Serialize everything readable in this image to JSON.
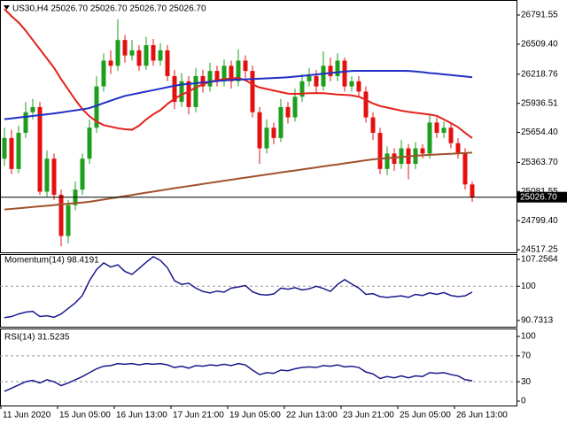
{
  "chart_data": [
    {
      "type": "candlestick",
      "title": "US30,H4  25026.70 25026.70 25026.70 25026.70",
      "categories": [
        "11 Jun 2020",
        null,
        null,
        null,
        null,
        null,
        null,
        null,
        "15 Jun 05:00",
        null,
        null,
        null,
        null,
        null,
        null,
        null,
        "16 Jun 13:00",
        null,
        null,
        null,
        null,
        null,
        null,
        null,
        "17 Jun 21:00",
        null,
        null,
        null,
        null,
        null,
        null,
        null,
        "19 Jun 05:00",
        null,
        null,
        null,
        null,
        null,
        null,
        null,
        "22 Jun 13:00",
        null,
        null,
        null,
        null,
        null,
        null,
        null,
        "23 Jun 21:00",
        null,
        null,
        null,
        null,
        null,
        null,
        null,
        "25 Jun 05:00",
        null,
        null,
        null,
        null,
        null,
        null,
        null,
        "26 Jun 13:00",
        null,
        null
      ],
      "open": [
        25400,
        25600,
        25300,
        25650,
        25850,
        25900,
        25080,
        25400,
        25050,
        24650,
        24950,
        25100,
        25400,
        25700,
        26100,
        26350,
        26300,
        26550,
        26400,
        26450,
        26300,
        26500,
        26350,
        26450,
        26200,
        25950,
        26150,
        25900,
        26200,
        26100,
        26250,
        26150,
        26300,
        26150,
        26350,
        26250,
        25850,
        25500,
        25700,
        25600,
        25900,
        25800,
        26000,
        26150,
        26200,
        26100,
        26300,
        26200,
        26350,
        26100,
        26150,
        26050,
        25800,
        25650,
        25300,
        25450,
        25350,
        25500,
        25350,
        25500,
        25450,
        25750,
        25650,
        25700,
        25550,
        25450,
        25150
      ],
      "high": [
        25700,
        25680,
        25720,
        25950,
        25980,
        25950,
        25480,
        25450,
        25100,
        25000,
        25180,
        25450,
        25780,
        26200,
        26420,
        26450,
        26750,
        26600,
        26550,
        26500,
        26580,
        26560,
        26520,
        26500,
        26260,
        26230,
        26200,
        26280,
        26260,
        26330,
        26300,
        26360,
        26350,
        26460,
        26400,
        26300,
        25900,
        25780,
        25750,
        25980,
        25950,
        26080,
        26220,
        26280,
        26260,
        26440,
        26380,
        26420,
        26380,
        26200,
        26200,
        26100,
        25850,
        25700,
        25520,
        25500,
        25580,
        25540,
        25560,
        25540,
        25820,
        25800,
        25760,
        25740,
        25600,
        25500,
        25180
      ],
      "low": [
        25330,
        25250,
        25260,
        25600,
        25780,
        25050,
        25030,
        25000,
        24550,
        24580,
        24900,
        25050,
        25350,
        25650,
        26050,
        26220,
        26250,
        26330,
        26350,
        26250,
        26260,
        26300,
        26300,
        26150,
        25880,
        25900,
        25830,
        25850,
        26040,
        26050,
        26100,
        26100,
        26080,
        26100,
        26180,
        25800,
        25350,
        25450,
        25540,
        25560,
        25740,
        25760,
        25950,
        26100,
        26040,
        26060,
        26150,
        26150,
        26050,
        26050,
        26000,
        25750,
        25580,
        25250,
        25240,
        25280,
        25300,
        25200,
        25300,
        25400,
        25400,
        25600,
        25600,
        25500,
        25400,
        25100,
        24980
      ],
      "close": [
        25600,
        25300,
        25650,
        25850,
        25900,
        25080,
        25400,
        25050,
        24650,
        24950,
        25100,
        25400,
        25700,
        26100,
        26350,
        26300,
        26550,
        26400,
        26450,
        26300,
        26500,
        26350,
        26450,
        26200,
        25950,
        26150,
        25900,
        26200,
        26100,
        26250,
        26150,
        26300,
        26150,
        26350,
        26250,
        25850,
        25500,
        25700,
        25600,
        25900,
        25800,
        26000,
        26150,
        26200,
        26100,
        26300,
        26200,
        26350,
        26100,
        26150,
        26050,
        25800,
        25650,
        25300,
        25450,
        25350,
        25500,
        25350,
        25500,
        25450,
        25750,
        25650,
        25700,
        25550,
        25450,
        25150,
        25026.7
      ],
      "up_color": "#1e9e1e",
      "down_color": "#e41010",
      "series": [
        {
          "color": "#e4221b",
          "values": [
            26850,
            26780,
            26720,
            26640,
            26550,
            26460,
            26370,
            26280,
            26170,
            26070,
            25970,
            25880,
            25810,
            25760,
            25725,
            25710,
            25695,
            25685,
            25680,
            25720,
            25780,
            25830,
            25870,
            25930,
            25980,
            26020,
            26050,
            26090,
            26120,
            26145,
            26160,
            26170,
            26178,
            26182,
            26160,
            26120,
            26090,
            26075,
            26060,
            26045,
            26030,
            26028,
            26030,
            26034,
            26036,
            26034,
            26028,
            26022,
            26018,
            26013,
            26000,
            25970,
            25935,
            25910,
            25895,
            25880,
            25865,
            25853,
            25845,
            25836,
            25827,
            25815,
            25780,
            25745,
            25705,
            25650,
            25600
          ]
        },
        {
          "color": "#1f2fc4",
          "values": [
            25782,
            25790,
            25798,
            25806,
            25814,
            25822,
            25830,
            25838,
            25848,
            25858,
            25868,
            25878,
            25890,
            25914,
            25938,
            25962,
            25986,
            26008,
            26022,
            26036,
            26050,
            26064,
            26078,
            26092,
            26106,
            26118,
            26124,
            26131,
            26138,
            26145,
            26152,
            26158,
            26163,
            26166,
            26169,
            26172,
            26175,
            26178,
            26181,
            26185,
            26189,
            26195,
            26202,
            26209,
            26216,
            26223,
            26230,
            26237,
            26244,
            26250,
            26251,
            26251,
            26251,
            26251,
            26251,
            26251,
            26251,
            26250,
            26245,
            26238,
            26230,
            26224,
            26217,
            26210,
            26203,
            26196,
            26189
          ]
        },
        {
          "color": "#a0522d",
          "values": [
            24907,
            24913,
            24919,
            24925,
            24932,
            24938,
            24944,
            24950,
            24956,
            24963,
            24969,
            24975,
            24982,
            24993,
            25004,
            25015,
            25026,
            25037,
            25048,
            25059,
            25070,
            25081,
            25092,
            25103,
            25114,
            25124,
            25134,
            25144,
            25155,
            25165,
            25175,
            25186,
            25196,
            25206,
            25216,
            25226,
            25236,
            25246,
            25256,
            25266,
            25276,
            25285,
            25295,
            25305,
            25315,
            25325,
            25335,
            25344,
            25354,
            25364,
            25374,
            25384,
            25393,
            25399,
            25405,
            25411,
            25416,
            25422,
            25428,
            25433,
            25437,
            25440,
            25444,
            25447,
            25451,
            25454,
            25458
          ]
        }
      ],
      "last_price": {
        "value": 25026.7,
        "label": "25026.70"
      },
      "ylim": [
        24492,
        26929
      ],
      "yticks": [
        26791.55,
        {
          "value": 26509.4,
          "label": "26509.40"
        },
        26218.76,
        25936.51,
        {
          "value": 25654.4,
          "label": "25654.40"
        },
        {
          "value": 25363.7,
          "label": "25363.70"
        },
        25081.55,
        {
          "value": 24799.4,
          "label": "24799.40"
        },
        24517.25
      ]
    },
    {
      "type": "line",
      "title": "Momentum(14) 98.4191",
      "color": "#1a1a8c",
      "values": [
        91.5,
        91.8,
        92.5,
        93.0,
        93.2,
        91.8,
        92.0,
        91.6,
        92.5,
        94.0,
        95.5,
        97.5,
        101.5,
        104.5,
        106.3,
        105.2,
        105.8,
        104.0,
        103.2,
        104.8,
        106.5,
        108.0,
        107.0,
        105.0,
        101.5,
        100.5,
        100.8,
        99.5,
        98.6,
        98.2,
        98.7,
        98.4,
        99.5,
        99.8,
        100.2,
        98.5,
        97.8,
        97.6,
        97.9,
        99.5,
        99.2,
        99.6,
        99.0,
        99.3,
        100.0,
        99.4,
        98.6,
        100.5,
        101.8,
        100.6,
        99.5,
        97.8,
        98.0,
        97.2,
        97.0,
        97.2,
        97.4,
        97.0,
        97.8,
        97.5,
        98.2,
        97.8,
        98.3,
        97.5,
        97.2,
        97.4,
        98.4191
      ],
      "levels": [
        100
      ],
      "ylim": [
        89.05,
        108.69
      ],
      "yticks": [
        107.2564,
        100,
        90.7313
      ]
    },
    {
      "type": "line",
      "title": "RSI(14) 31.5235",
      "color": "#1a1a8c",
      "values": [
        15,
        20,
        25,
        30,
        32,
        28,
        33,
        30,
        24,
        28,
        33,
        38,
        44,
        50,
        54,
        55,
        58,
        57,
        58,
        56,
        58,
        57,
        58,
        56,
        52,
        54,
        51,
        55,
        54,
        56,
        55,
        57,
        55,
        58,
        56,
        48,
        41,
        44,
        43,
        48,
        47,
        50,
        52,
        53,
        52,
        55,
        54,
        56,
        53,
        54,
        52,
        45,
        42,
        35,
        38,
        36,
        39,
        36,
        39,
        38,
        44,
        43,
        44,
        41,
        39,
        33,
        31.5235
      ],
      "levels": [
        70,
        30
      ],
      "ylim": [
        -6.8,
        112.3
      ],
      "yticks": [
        100,
        70,
        30,
        0
      ]
    }
  ]
}
